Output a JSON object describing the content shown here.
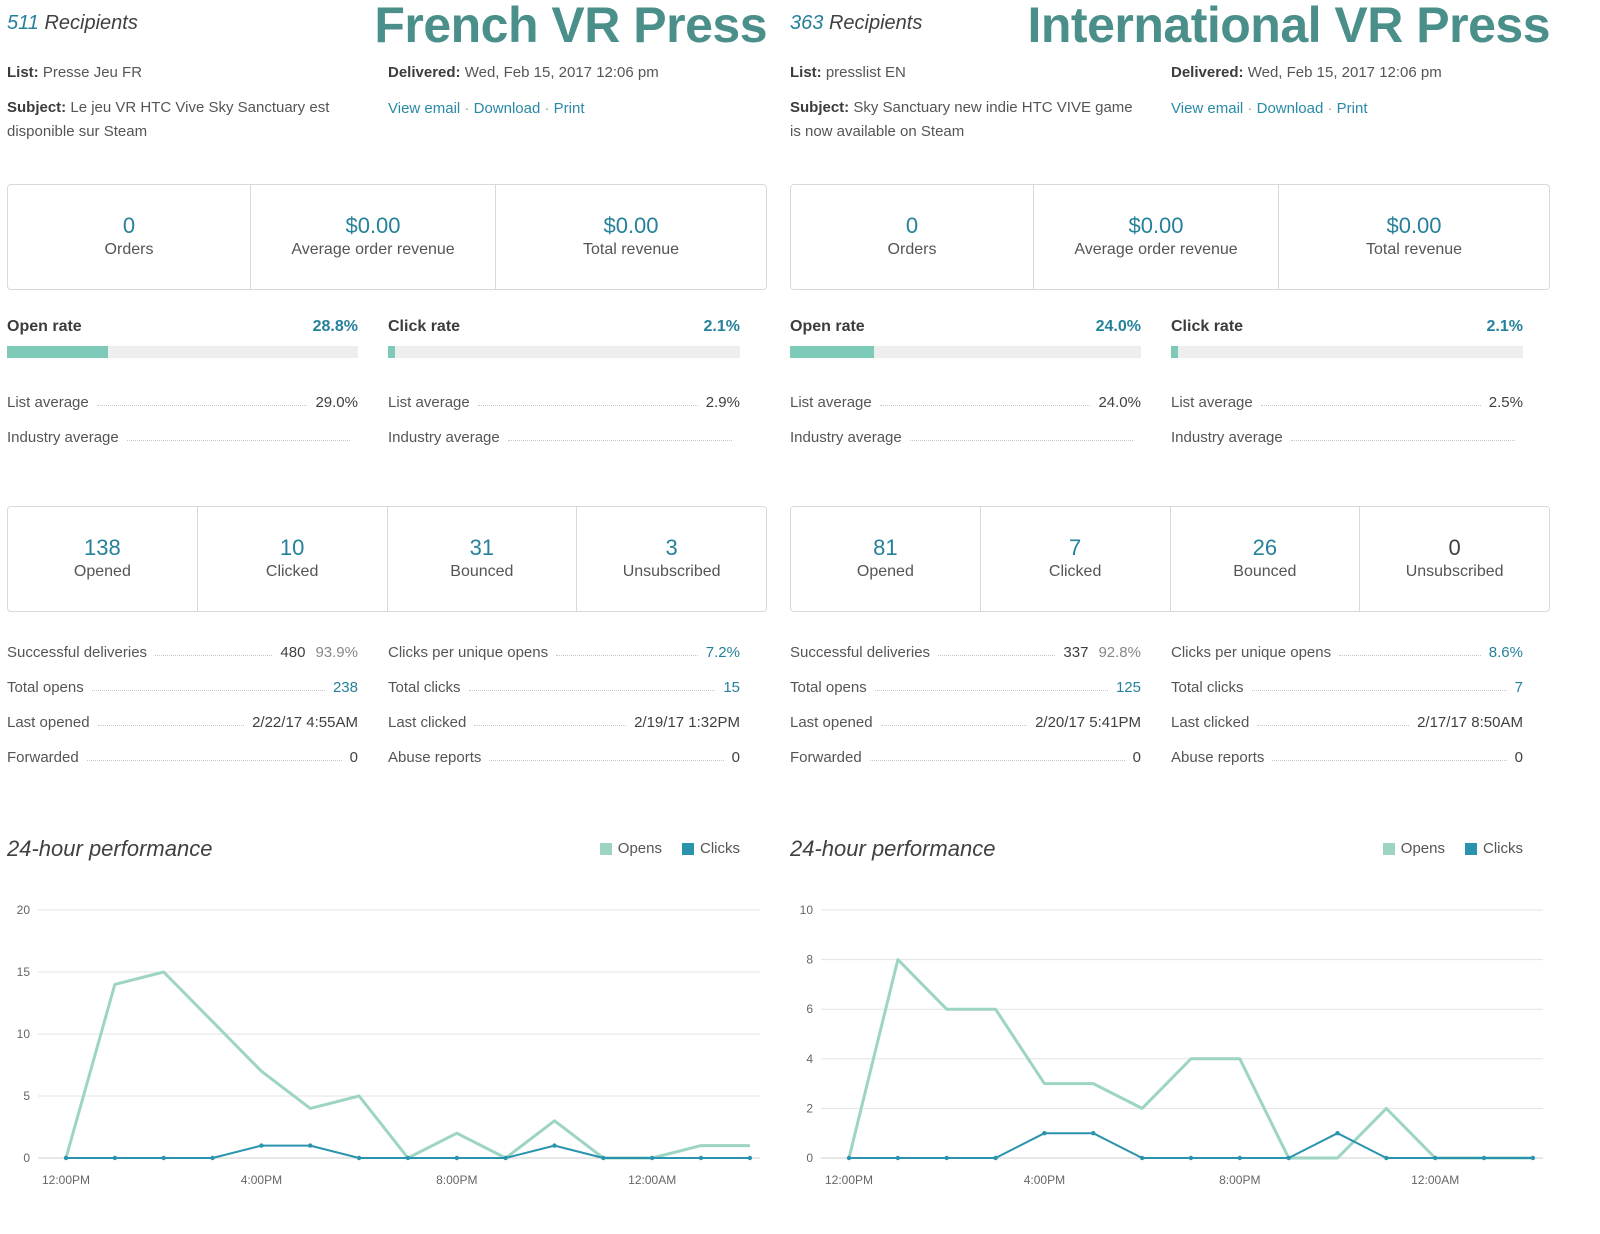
{
  "colors": {
    "accent": "#25819b",
    "opens": "#9dd4c4",
    "clicks": "#2a93ad",
    "title": "#4a8f8a"
  },
  "panels": [
    {
      "recipients_count": "511",
      "recipients_label": "Recipients",
      "title": "French VR Press",
      "list_label": "List:",
      "list_value": "Presse Jeu FR",
      "delivered_label": "Delivered:",
      "delivered_value": "Wed, Feb 15, 2017 12:06 pm",
      "subject_label": "Subject:",
      "subject_value": "Le jeu VR HTC Vive Sky Sanctuary est disponible sur Steam",
      "links": [
        "View email",
        "Download",
        "Print"
      ],
      "revenue": [
        {
          "value": "0",
          "label": "Orders"
        },
        {
          "value": "$0.00",
          "label": "Average order revenue"
        },
        {
          "value": "$0.00",
          "label": "Total revenue"
        }
      ],
      "open_rate": {
        "label": "Open rate",
        "value": "28.8%",
        "fraction": 0.288
      },
      "click_rate": {
        "label": "Click rate",
        "value": "2.1%",
        "fraction": 0.021
      },
      "open_avgs": [
        {
          "label": "List average",
          "value": "29.0%"
        },
        {
          "label": "Industry average",
          "value": ""
        }
      ],
      "click_avgs": [
        {
          "label": "List average",
          "value": "2.9%"
        },
        {
          "label": "Industry average",
          "value": ""
        }
      ],
      "counts": [
        {
          "value": "138",
          "label": "Opened",
          "blue": true
        },
        {
          "value": "10",
          "label": "Clicked",
          "blue": true
        },
        {
          "value": "31",
          "label": "Bounced",
          "blue": true
        },
        {
          "value": "3",
          "label": "Unsubscribed",
          "blue": true
        }
      ],
      "stats_left": [
        {
          "label": "Successful deliveries",
          "value": "480",
          "pct": "93.9%"
        },
        {
          "label": "Total opens",
          "value": "238",
          "blue": true
        },
        {
          "label": "Last opened",
          "value": "2/22/17 4:55AM"
        },
        {
          "label": "Forwarded",
          "value": "0"
        }
      ],
      "stats_right": [
        {
          "label": "Clicks per unique opens",
          "value": "7.2%",
          "blue": true
        },
        {
          "label": "Total clicks",
          "value": "15",
          "blue": true
        },
        {
          "label": "Last clicked",
          "value": "2/19/17 1:32PM"
        },
        {
          "label": "Abuse reports",
          "value": "0"
        }
      ],
      "perf_title": "24-hour performance",
      "legend": [
        "Opens",
        "Clicks"
      ]
    },
    {
      "recipients_count": "363",
      "recipients_label": "Recipients",
      "title": "International VR Press",
      "list_label": "List:",
      "list_value": "presslist EN",
      "delivered_label": "Delivered:",
      "delivered_value": "Wed, Feb 15, 2017 12:06 pm",
      "subject_label": "Subject:",
      "subject_value": "Sky Sanctuary new indie HTC VIVE game is now available on Steam",
      "links": [
        "View email",
        "Download",
        "Print"
      ],
      "revenue": [
        {
          "value": "0",
          "label": "Orders"
        },
        {
          "value": "$0.00",
          "label": "Average order revenue"
        },
        {
          "value": "$0.00",
          "label": "Total revenue"
        }
      ],
      "open_rate": {
        "label": "Open rate",
        "value": "24.0%",
        "fraction": 0.24
      },
      "click_rate": {
        "label": "Click rate",
        "value": "2.1%",
        "fraction": 0.021
      },
      "open_avgs": [
        {
          "label": "List average",
          "value": "24.0%"
        },
        {
          "label": "Industry average",
          "value": ""
        }
      ],
      "click_avgs": [
        {
          "label": "List average",
          "value": "2.5%"
        },
        {
          "label": "Industry average",
          "value": ""
        }
      ],
      "counts": [
        {
          "value": "81",
          "label": "Opened",
          "blue": true
        },
        {
          "value": "7",
          "label": "Clicked",
          "blue": true
        },
        {
          "value": "26",
          "label": "Bounced",
          "blue": true
        },
        {
          "value": "0",
          "label": "Unsubscribed",
          "blue": false
        }
      ],
      "stats_left": [
        {
          "label": "Successful deliveries",
          "value": "337",
          "pct": "92.8%"
        },
        {
          "label": "Total opens",
          "value": "125",
          "blue": true
        },
        {
          "label": "Last opened",
          "value": "2/20/17 5:41PM"
        },
        {
          "label": "Forwarded",
          "value": "0"
        }
      ],
      "stats_right": [
        {
          "label": "Clicks per unique opens",
          "value": "8.6%",
          "blue": true
        },
        {
          "label": "Total clicks",
          "value": "7",
          "blue": true
        },
        {
          "label": "Last clicked",
          "value": "2/17/17 8:50AM"
        },
        {
          "label": "Abuse reports",
          "value": "0"
        }
      ],
      "perf_title": "24-hour performance",
      "legend": [
        "Opens",
        "Clicks"
      ]
    }
  ],
  "chart_data": [
    {
      "type": "line",
      "title": "24-hour performance",
      "x": [
        "12:00PM",
        "1:00PM",
        "2:00PM",
        "3:00PM",
        "4:00PM",
        "5:00PM",
        "6:00PM",
        "7:00PM",
        "8:00PM",
        "9:00PM",
        "10:00PM",
        "11:00PM",
        "12:00AM",
        "1:00AM",
        "2:00AM"
      ],
      "x_tick_labels": [
        "12:00PM",
        "4:00PM",
        "8:00PM",
        "12:00AM"
      ],
      "ylim": [
        0,
        20
      ],
      "y_ticks": [
        0,
        5,
        10,
        15,
        20
      ],
      "grid": true,
      "legend": "top-right",
      "series": [
        {
          "name": "Opens",
          "values": [
            0,
            14,
            15,
            11,
            7,
            4,
            5,
            0,
            2,
            0,
            3,
            0,
            0,
            1,
            1
          ]
        },
        {
          "name": "Clicks",
          "values": [
            0,
            0,
            0,
            0,
            1,
            1,
            0,
            0,
            0,
            0,
            1,
            0,
            0,
            0,
            0
          ]
        }
      ]
    },
    {
      "type": "line",
      "title": "24-hour performance",
      "x": [
        "12:00PM",
        "1:00PM",
        "2:00PM",
        "3:00PM",
        "4:00PM",
        "5:00PM",
        "6:00PM",
        "7:00PM",
        "8:00PM",
        "9:00PM",
        "10:00PM",
        "11:00PM",
        "12:00AM",
        "1:00AM",
        "2:00AM"
      ],
      "x_tick_labels": [
        "12:00PM",
        "4:00PM",
        "8:00PM",
        "12:00AM"
      ],
      "ylim": [
        0,
        10
      ],
      "y_ticks": [
        0,
        2,
        4,
        6,
        8,
        10
      ],
      "grid": true,
      "legend": "top-right",
      "series": [
        {
          "name": "Opens",
          "values": [
            0,
            8,
            6,
            6,
            3,
            3,
            2,
            4,
            4,
            0,
            0,
            2,
            0,
            0,
            0
          ]
        },
        {
          "name": "Clicks",
          "values": [
            0,
            0,
            0,
            0,
            1,
            1,
            0,
            0,
            0,
            0,
            1,
            0,
            0,
            0,
            0
          ]
        }
      ]
    }
  ]
}
